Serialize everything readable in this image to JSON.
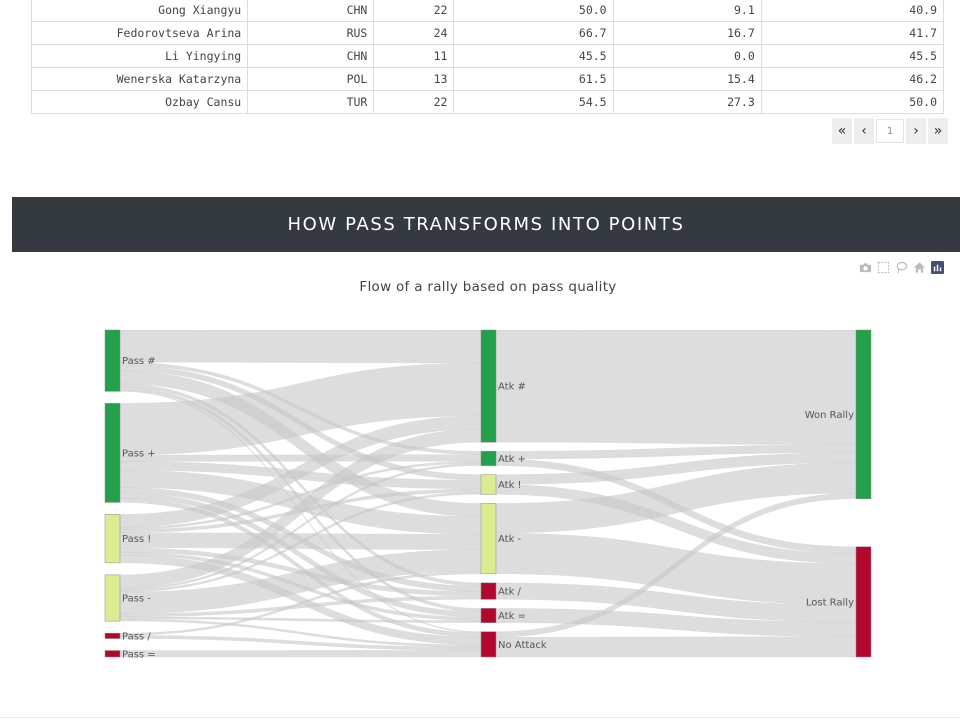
{
  "table": {
    "rows": [
      [
        "Gong Xiangyu",
        "CHN",
        "22",
        "50.0",
        "9.1",
        "40.9"
      ],
      [
        "Fedorovtseva Arina",
        "RUS",
        "24",
        "66.7",
        "16.7",
        "41.7"
      ],
      [
        "Li Yingying",
        "CHN",
        "11",
        "45.5",
        "0.0",
        "45.5"
      ],
      [
        "Wenerska Katarzyna",
        "POL",
        "13",
        "61.5",
        "15.4",
        "46.2"
      ],
      [
        "Ozbay Cansu",
        "TUR",
        "22",
        "54.5",
        "27.3",
        "50.0"
      ]
    ]
  },
  "pagination": {
    "first": "«",
    "prev": "‹",
    "page_value": "1",
    "next": "›",
    "last": "»"
  },
  "section": {
    "title": "HOW PASS TRANSFORMS INTO POINTS"
  },
  "toolbar": {
    "icons": [
      "camera-icon",
      "box-select-icon",
      "lasso-icon",
      "home-icon",
      "plotly-logo-icon"
    ]
  },
  "chart_data": {
    "type": "sankey",
    "title": "Flow of a rally based on pass quality",
    "colors": {
      "good": "#22a04b",
      "neutral": "#d9ec8f",
      "bad": "#b3072e",
      "link": "#c8c8c8"
    },
    "nodes": [
      {
        "label": "Pass #",
        "color": "good"
      },
      {
        "label": "Pass +",
        "color": "good"
      },
      {
        "label": "Pass !",
        "color": "neutral"
      },
      {
        "label": "Pass -",
        "color": "neutral"
      },
      {
        "label": "Pass /",
        "color": "bad"
      },
      {
        "label": "Pass =",
        "color": "bad"
      },
      {
        "label": "Atk #",
        "color": "good"
      },
      {
        "label": "Atk +",
        "color": "good"
      },
      {
        "label": "Atk !",
        "color": "neutral"
      },
      {
        "label": "Atk -",
        "color": "neutral"
      },
      {
        "label": "Atk /",
        "color": "bad"
      },
      {
        "label": "Atk =",
        "color": "bad"
      },
      {
        "label": "No Attack",
        "color": "bad"
      },
      {
        "label": "Won Rally",
        "color": "good"
      },
      {
        "label": "Lost Rally",
        "color": "bad"
      }
    ],
    "links": [
      {
        "source": "Pass #",
        "target": "Atk #",
        "value": 30
      },
      {
        "source": "Pass #",
        "target": "Atk +",
        "value": 3
      },
      {
        "source": "Pass #",
        "target": "Atk !",
        "value": 5
      },
      {
        "source": "Pass #",
        "target": "Atk -",
        "value": 12
      },
      {
        "source": "Pass #",
        "target": "Atk /",
        "value": 3
      },
      {
        "source": "Pass #",
        "target": "Atk =",
        "value": 3
      },
      {
        "source": "Pass #",
        "target": "No Attack",
        "value": 1
      },
      {
        "source": "Pass +",
        "target": "Atk #",
        "value": 48
      },
      {
        "source": "Pass +",
        "target": "Atk +",
        "value": 6
      },
      {
        "source": "Pass +",
        "target": "Atk !",
        "value": 8
      },
      {
        "source": "Pass +",
        "target": "Atk -",
        "value": 16
      },
      {
        "source": "Pass +",
        "target": "Atk /",
        "value": 5
      },
      {
        "source": "Pass +",
        "target": "Atk =",
        "value": 5
      },
      {
        "source": "Pass +",
        "target": "No Attack",
        "value": 4
      },
      {
        "source": "Pass !",
        "target": "Atk #",
        "value": 12
      },
      {
        "source": "Pass !",
        "target": "Atk +",
        "value": 2
      },
      {
        "source": "Pass !",
        "target": "Atk !",
        "value": 3
      },
      {
        "source": "Pass !",
        "target": "Atk -",
        "value": 14
      },
      {
        "source": "Pass !",
        "target": "Atk /",
        "value": 4
      },
      {
        "source": "Pass !",
        "target": "Atk =",
        "value": 3
      },
      {
        "source": "Pass !",
        "target": "No Attack",
        "value": 7
      },
      {
        "source": "Pass -",
        "target": "Atk #",
        "value": 12
      },
      {
        "source": "Pass -",
        "target": "Atk +",
        "value": 2
      },
      {
        "source": "Pass -",
        "target": "Atk !",
        "value": 2
      },
      {
        "source": "Pass -",
        "target": "Atk -",
        "value": 20
      },
      {
        "source": "Pass -",
        "target": "Atk /",
        "value": 3
      },
      {
        "source": "Pass -",
        "target": "Atk =",
        "value": 2
      },
      {
        "source": "Pass -",
        "target": "No Attack",
        "value": 2
      },
      {
        "source": "Pass /",
        "target": "Atk -",
        "value": 2
      },
      {
        "source": "Pass /",
        "target": "No Attack",
        "value": 3
      },
      {
        "source": "Pass =",
        "target": "No Attack",
        "value": 6
      },
      {
        "source": "Atk #",
        "target": "Won Rally",
        "value": 102
      },
      {
        "source": "Atk +",
        "target": "Won Rally",
        "value": 7
      },
      {
        "source": "Atk +",
        "target": "Lost Rally",
        "value": 6
      },
      {
        "source": "Atk !",
        "target": "Won Rally",
        "value": 9
      },
      {
        "source": "Atk !",
        "target": "Lost Rally",
        "value": 9
      },
      {
        "source": "Atk -",
        "target": "Won Rally",
        "value": 27
      },
      {
        "source": "Atk -",
        "target": "Lost Rally",
        "value": 37
      },
      {
        "source": "Atk /",
        "target": "Lost Rally",
        "value": 15
      },
      {
        "source": "Atk =",
        "target": "Lost Rally",
        "value": 13
      },
      {
        "source": "No Attack",
        "target": "Won Rally",
        "value": 5
      },
      {
        "source": "No Attack",
        "target": "Lost Rally",
        "value": 18
      }
    ]
  }
}
